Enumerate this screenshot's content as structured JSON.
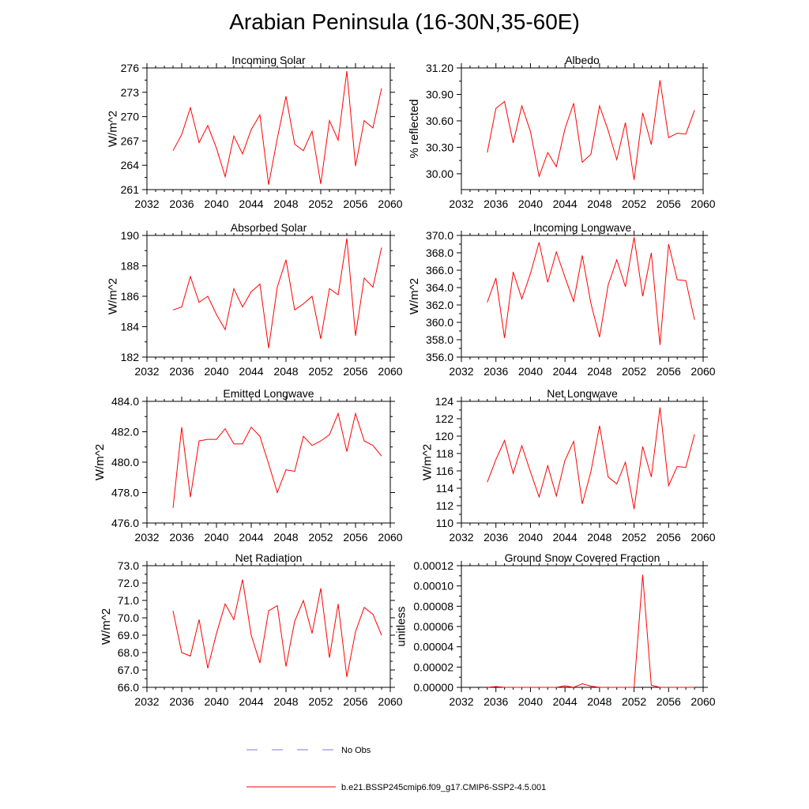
{
  "title": "Arabian Peninsula (16-30N,35-60E)",
  "colors": {
    "series": "#ff0000",
    "obs": "#7b7bd6",
    "axis": "#000000"
  },
  "legend": [
    {
      "label": "No Obs",
      "style": "dashed",
      "color": "#7b7bd6"
    },
    {
      "label": "b.e21.BSSP245cmip6.f09_g17.CMIP6-SSP2-4.5.001",
      "style": "solid",
      "color": "#ff0000"
    }
  ],
  "chart_data": [
    {
      "type": "line",
      "title": "Incoming Solar",
      "ylabel": "W/m^2",
      "xlim": [
        2032,
        2060
      ],
      "ylim": [
        261,
        276
      ],
      "xticks": [
        "2032",
        "2036",
        "2040",
        "2044",
        "2048",
        "2052",
        "2056",
        "2060"
      ],
      "yticks": [
        "261",
        "264",
        "267",
        "270",
        "273",
        "276"
      ],
      "x": [
        2035,
        2036,
        2037,
        2038,
        2039,
        2040,
        2041,
        2042,
        2043,
        2044,
        2045,
        2046,
        2047,
        2048,
        2049,
        2050,
        2051,
        2052,
        2053,
        2054,
        2055,
        2056,
        2057,
        2058,
        2059
      ],
      "series": [
        {
          "name": "b.e21.BSSP245cmip6.f09_g17.CMIP6-SSP2-4.5.001",
          "values": [
            265.8,
            267.8,
            271.1,
            266.8,
            268.9,
            266.1,
            262.6,
            267.6,
            265.4,
            268.4,
            270.2,
            261.6,
            267.3,
            272.5,
            266.6,
            265.8,
            268.2,
            261.7,
            269.5,
            267.1,
            275.6,
            263.9,
            269.5,
            268.6,
            273.5
          ]
        }
      ]
    },
    {
      "type": "line",
      "title": "Albedo",
      "ylabel": "% reflected",
      "xlim": [
        2032,
        2060
      ],
      "ylim": [
        29.82,
        31.2
      ],
      "xticks": [
        "2032",
        "2036",
        "2040",
        "2044",
        "2048",
        "2052",
        "2056",
        "2060"
      ],
      "yticks": [
        "30.00",
        "30.30",
        "30.60",
        "30.90",
        "31.20"
      ],
      "x": [
        2035,
        2036,
        2037,
        2038,
        2039,
        2040,
        2041,
        2042,
        2043,
        2044,
        2045,
        2046,
        2047,
        2048,
        2049,
        2050,
        2051,
        2052,
        2053,
        2054,
        2055,
        2056,
        2057,
        2058,
        2059
      ],
      "series": [
        {
          "name": "b.e21.BSSP245cmip6.f09_g17.CMIP6-SSP2-4.5.001",
          "values": [
            30.24,
            30.74,
            30.82,
            30.35,
            30.77,
            30.48,
            29.97,
            30.24,
            30.08,
            30.51,
            30.8,
            30.13,
            30.22,
            30.77,
            30.49,
            30.16,
            30.58,
            29.93,
            30.69,
            30.33,
            31.06,
            30.41,
            30.46,
            30.45,
            30.72
          ]
        }
      ]
    },
    {
      "type": "line",
      "title": "Absorbed Solar",
      "ylabel": "W/m^2",
      "xlim": [
        2032,
        2060
      ],
      "ylim": [
        182,
        190
      ],
      "xticks": [
        "2032",
        "2036",
        "2040",
        "2044",
        "2048",
        "2052",
        "2056",
        "2060"
      ],
      "yticks": [
        "182",
        "184",
        "186",
        "188",
        "190"
      ],
      "x": [
        2035,
        2036,
        2037,
        2038,
        2039,
        2040,
        2041,
        2042,
        2043,
        2044,
        2045,
        2046,
        2047,
        2048,
        2049,
        2050,
        2051,
        2052,
        2053,
        2054,
        2055,
        2056,
        2057,
        2058,
        2059
      ],
      "series": [
        {
          "name": "b.e21.BSSP245cmip6.f09_g17.CMIP6-SSP2-4.5.001",
          "values": [
            185.1,
            185.3,
            187.3,
            185.6,
            186.0,
            184.8,
            183.8,
            186.5,
            185.3,
            186.3,
            186.8,
            182.6,
            186.6,
            188.4,
            185.1,
            185.5,
            186.0,
            183.2,
            186.5,
            186.1,
            189.8,
            183.4,
            187.2,
            186.6,
            189.2
          ]
        }
      ]
    },
    {
      "type": "line",
      "title": "Incoming Longwave",
      "ylabel": "W/m^2",
      "xlim": [
        2032,
        2060
      ],
      "ylim": [
        356,
        370
      ],
      "xticks": [
        "2032",
        "2036",
        "2040",
        "2044",
        "2048",
        "2052",
        "2056",
        "2060"
      ],
      "yticks": [
        "356.0",
        "358.0",
        "360.0",
        "362.0",
        "364.0",
        "366.0",
        "368.0",
        "370.0"
      ],
      "x": [
        2035,
        2036,
        2037,
        2038,
        2039,
        2040,
        2041,
        2042,
        2043,
        2044,
        2045,
        2046,
        2047,
        2048,
        2049,
        2050,
        2051,
        2052,
        2053,
        2054,
        2055,
        2056,
        2057,
        2058,
        2059
      ],
      "series": [
        {
          "name": "b.e21.BSSP245cmip6.f09_g17.CMIP6-SSP2-4.5.001",
          "values": [
            362.3,
            365.1,
            358.2,
            365.8,
            362.7,
            365.6,
            369.2,
            364.6,
            368.1,
            365.2,
            362.4,
            367.7,
            362.2,
            358.3,
            364.3,
            367.2,
            364.1,
            369.8,
            363.0,
            368.0,
            357.4,
            369.0,
            364.9,
            364.8,
            360.3
          ]
        }
      ]
    },
    {
      "type": "line",
      "title": "Emitted Longwave",
      "ylabel": "W/m^2",
      "xlim": [
        2032,
        2060
      ],
      "ylim": [
        476,
        484
      ],
      "xticks": [
        "2032",
        "2036",
        "2040",
        "2044",
        "2048",
        "2052",
        "2056",
        "2060"
      ],
      "yticks": [
        "476.0",
        "478.0",
        "480.0",
        "482.0",
        "484.0"
      ],
      "x": [
        2035,
        2036,
        2037,
        2038,
        2039,
        2040,
        2041,
        2042,
        2043,
        2044,
        2045,
        2046,
        2047,
        2048,
        2049,
        2050,
        2051,
        2052,
        2053,
        2054,
        2055,
        2056,
        2057,
        2058,
        2059
      ],
      "series": [
        {
          "name": "b.e21.BSSP245cmip6.f09_g17.CMIP6-SSP2-4.5.001",
          "values": [
            477.0,
            482.3,
            477.7,
            481.4,
            481.5,
            481.5,
            482.2,
            481.2,
            481.2,
            482.3,
            481.7,
            479.9,
            478.0,
            479.5,
            479.4,
            481.7,
            481.1,
            481.4,
            481.8,
            483.2,
            480.7,
            483.2,
            481.4,
            481.1,
            480.4
          ]
        }
      ]
    },
    {
      "type": "line",
      "title": "Net Longwave",
      "ylabel": "W/m^2",
      "xlim": [
        2032,
        2060
      ],
      "ylim": [
        110,
        124
      ],
      "xticks": [
        "2032",
        "2036",
        "2040",
        "2044",
        "2048",
        "2052",
        "2056",
        "2060"
      ],
      "yticks": [
        "110",
        "112",
        "114",
        "116",
        "118",
        "120",
        "122",
        "124"
      ],
      "x": [
        2035,
        2036,
        2037,
        2038,
        2039,
        2040,
        2041,
        2042,
        2043,
        2044,
        2045,
        2046,
        2047,
        2048,
        2049,
        2050,
        2051,
        2052,
        2053,
        2054,
        2055,
        2056,
        2057,
        2058,
        2059
      ],
      "series": [
        {
          "name": "b.e21.BSSP245cmip6.f09_g17.CMIP6-SSP2-4.5.001",
          "values": [
            114.7,
            117.3,
            119.5,
            115.7,
            118.9,
            115.9,
            113.0,
            116.6,
            113.1,
            117.2,
            119.4,
            112.2,
            115.9,
            121.2,
            115.3,
            114.5,
            117.0,
            111.6,
            118.8,
            115.3,
            123.3,
            114.3,
            116.5,
            116.4,
            120.2
          ]
        }
      ]
    },
    {
      "type": "line",
      "title": "Net Radiation",
      "ylabel": "W/m^2",
      "xlim": [
        2032,
        2060
      ],
      "ylim": [
        66,
        73
      ],
      "xticks": [
        "2032",
        "2036",
        "2040",
        "2044",
        "2048",
        "2052",
        "2056",
        "2060"
      ],
      "yticks": [
        "66.0",
        "67.0",
        "68.0",
        "69.0",
        "70.0",
        "71.0",
        "72.0",
        "73.0"
      ],
      "x": [
        2035,
        2036,
        2037,
        2038,
        2039,
        2040,
        2041,
        2042,
        2043,
        2044,
        2045,
        2046,
        2047,
        2048,
        2049,
        2050,
        2051,
        2052,
        2053,
        2054,
        2055,
        2056,
        2057,
        2058,
        2059
      ],
      "series": [
        {
          "name": "b.e21.BSSP245cmip6.f09_g17.CMIP6-SSP2-4.5.001",
          "values": [
            70.4,
            68.0,
            67.8,
            69.9,
            67.1,
            69.1,
            70.8,
            69.9,
            72.2,
            69.0,
            67.4,
            70.4,
            70.7,
            67.2,
            69.8,
            71.0,
            69.1,
            71.7,
            67.7,
            70.8,
            66.6,
            69.2,
            70.6,
            70.2,
            69.0
          ]
        }
      ]
    },
    {
      "type": "line",
      "title": "Ground Snow Covered Fraction",
      "ylabel": "unitless",
      "xlim": [
        2032,
        2060
      ],
      "ylim": [
        0,
        0.00012
      ],
      "xticks": [
        "2032",
        "2036",
        "2040",
        "2044",
        "2048",
        "2052",
        "2056",
        "2060"
      ],
      "yticks": [
        "0.00000",
        "0.00002",
        "0.00004",
        "0.00006",
        "0.00008",
        "0.00010",
        "0.00012"
      ],
      "x": [
        2035,
        2036,
        2037,
        2038,
        2039,
        2040,
        2041,
        2042,
        2043,
        2044,
        2045,
        2046,
        2047,
        2048,
        2049,
        2050,
        2051,
        2052,
        2053,
        2054,
        2055,
        2056,
        2057,
        2058,
        2059
      ],
      "series": [
        {
          "name": "b.e21.BSSP245cmip6.f09_g17.CMIP6-SSP2-4.5.001",
          "values": [
            0,
            8e-07,
            0,
            0,
            0,
            0,
            0,
            0,
            0,
            1.5e-06,
            0,
            3.5e-06,
            1.2e-06,
            0,
            0,
            0,
            0,
            0,
            0.000111,
            2e-06,
            0,
            0,
            0,
            0,
            0
          ]
        }
      ]
    }
  ]
}
